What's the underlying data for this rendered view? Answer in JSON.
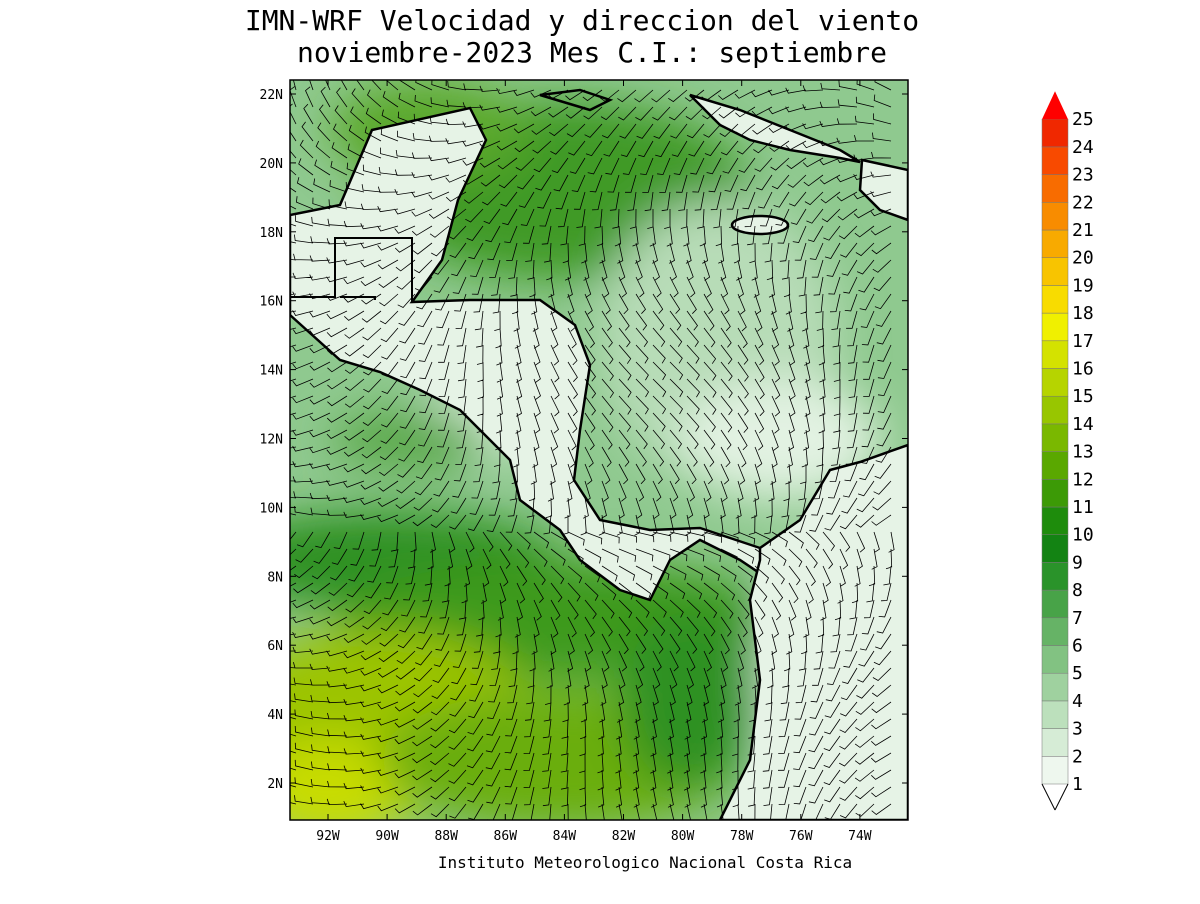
{
  "title": [
    "IMN-WRF Velocidad y direccion del viento",
    "noviembre-2023 Mes C.I.: septiembre"
  ],
  "lat_labels": [
    "22N",
    "20N",
    "18N",
    "16N",
    "14N",
    "12N",
    "10N",
    "8N",
    "6N",
    "4N",
    "2N"
  ],
  "lon_labels": [
    "92W",
    "90W",
    "88W",
    "86W",
    "84W",
    "82W",
    "80W",
    "78W",
    "76W",
    "74W"
  ],
  "colorbar": {
    "ticks": [
      1,
      2,
      3,
      4,
      5,
      6,
      7,
      8,
      9,
      10,
      11,
      12,
      13,
      14,
      15,
      16,
      17,
      18,
      19,
      20,
      21,
      22,
      23,
      24,
      25
    ],
    "colors": [
      "#eef7ee",
      "#d6ecd6",
      "#bce0bc",
      "#9fd19f",
      "#82c282",
      "#66b366",
      "#48a348",
      "#2a932a",
      "#138313",
      "#1e8c0c",
      "#3c9a06",
      "#5aa800",
      "#7ab800",
      "#98c600",
      "#b6d400",
      "#d4e200",
      "#f0f000",
      "#f8dc00",
      "#f8c400",
      "#f8aa00",
      "#f88c00",
      "#f86c00",
      "#f84a00",
      "#f02800"
    ],
    "extend_color": "#ff0000"
  },
  "footer": "Instituto Meteorologico Nacional Costa Rica"
}
